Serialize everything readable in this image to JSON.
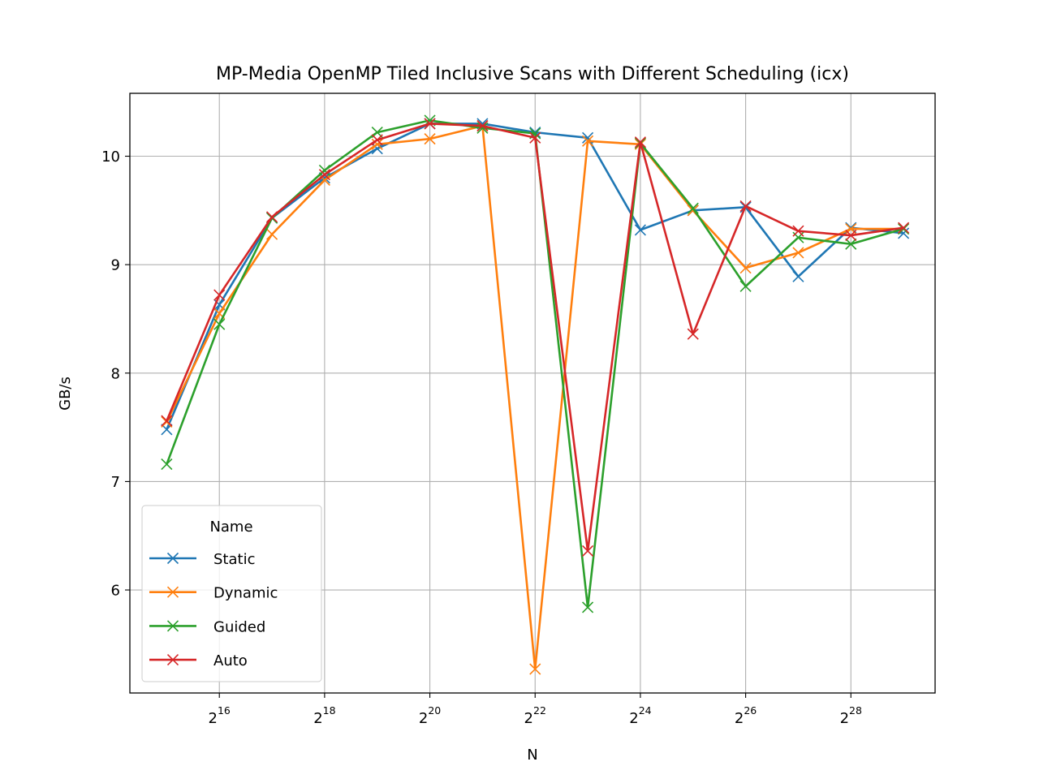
{
  "chart_data": {
    "type": "line",
    "title": "MP-Media OpenMP Tiled Inclusive Scans with Different Scheduling (icx)",
    "xlabel": "N",
    "ylabel": "GB/s",
    "x_scale": "log2",
    "x_exponents": [
      15,
      16,
      17,
      18,
      19,
      20,
      21,
      22,
      23,
      24,
      25,
      26,
      27,
      28,
      29
    ],
    "xlim_exponent": [
      14.3,
      29.6
    ],
    "ylim": [
      5.05,
      10.58
    ],
    "x_ticks": [
      {
        "exp": 16,
        "base": "2",
        "sup": "16"
      },
      {
        "exp": 18,
        "base": "2",
        "sup": "18"
      },
      {
        "exp": 20,
        "base": "2",
        "sup": "20"
      },
      {
        "exp": 22,
        "base": "2",
        "sup": "22"
      },
      {
        "exp": 24,
        "base": "2",
        "sup": "24"
      },
      {
        "exp": 26,
        "base": "2",
        "sup": "26"
      },
      {
        "exp": 28,
        "base": "2",
        "sup": "28"
      }
    ],
    "y_ticks": [
      6,
      7,
      8,
      9,
      10
    ],
    "y_tick_labels": [
      "6",
      "7",
      "8",
      "9",
      "10"
    ],
    "grid": true,
    "legend": {
      "title": "Name",
      "position": "lower-left"
    },
    "marker": "x",
    "series": [
      {
        "name": "Static",
        "color": "#1f77b4",
        "values": [
          7.48,
          8.63,
          9.43,
          9.8,
          10.07,
          10.3,
          10.3,
          10.22,
          10.17,
          9.32,
          9.5,
          9.53,
          8.89,
          9.34,
          9.29
        ]
      },
      {
        "name": "Dynamic",
        "color": "#ff7f0e",
        "values": [
          7.55,
          8.55,
          9.28,
          9.78,
          10.11,
          10.16,
          10.28,
          5.27,
          10.14,
          10.11,
          9.5,
          8.97,
          9.11,
          9.33,
          9.33
        ]
      },
      {
        "name": "Guided",
        "color": "#2ca02c",
        "values": [
          7.16,
          8.45,
          9.43,
          9.87,
          10.22,
          10.33,
          10.26,
          10.21,
          5.84,
          10.12,
          9.52,
          8.8,
          9.25,
          9.19,
          9.33
        ]
      },
      {
        "name": "Auto",
        "color": "#d62728",
        "values": [
          7.56,
          8.72,
          9.44,
          9.83,
          10.15,
          10.3,
          10.28,
          10.17,
          6.36,
          10.13,
          8.36,
          9.54,
          9.31,
          9.27,
          9.34
        ]
      }
    ]
  }
}
